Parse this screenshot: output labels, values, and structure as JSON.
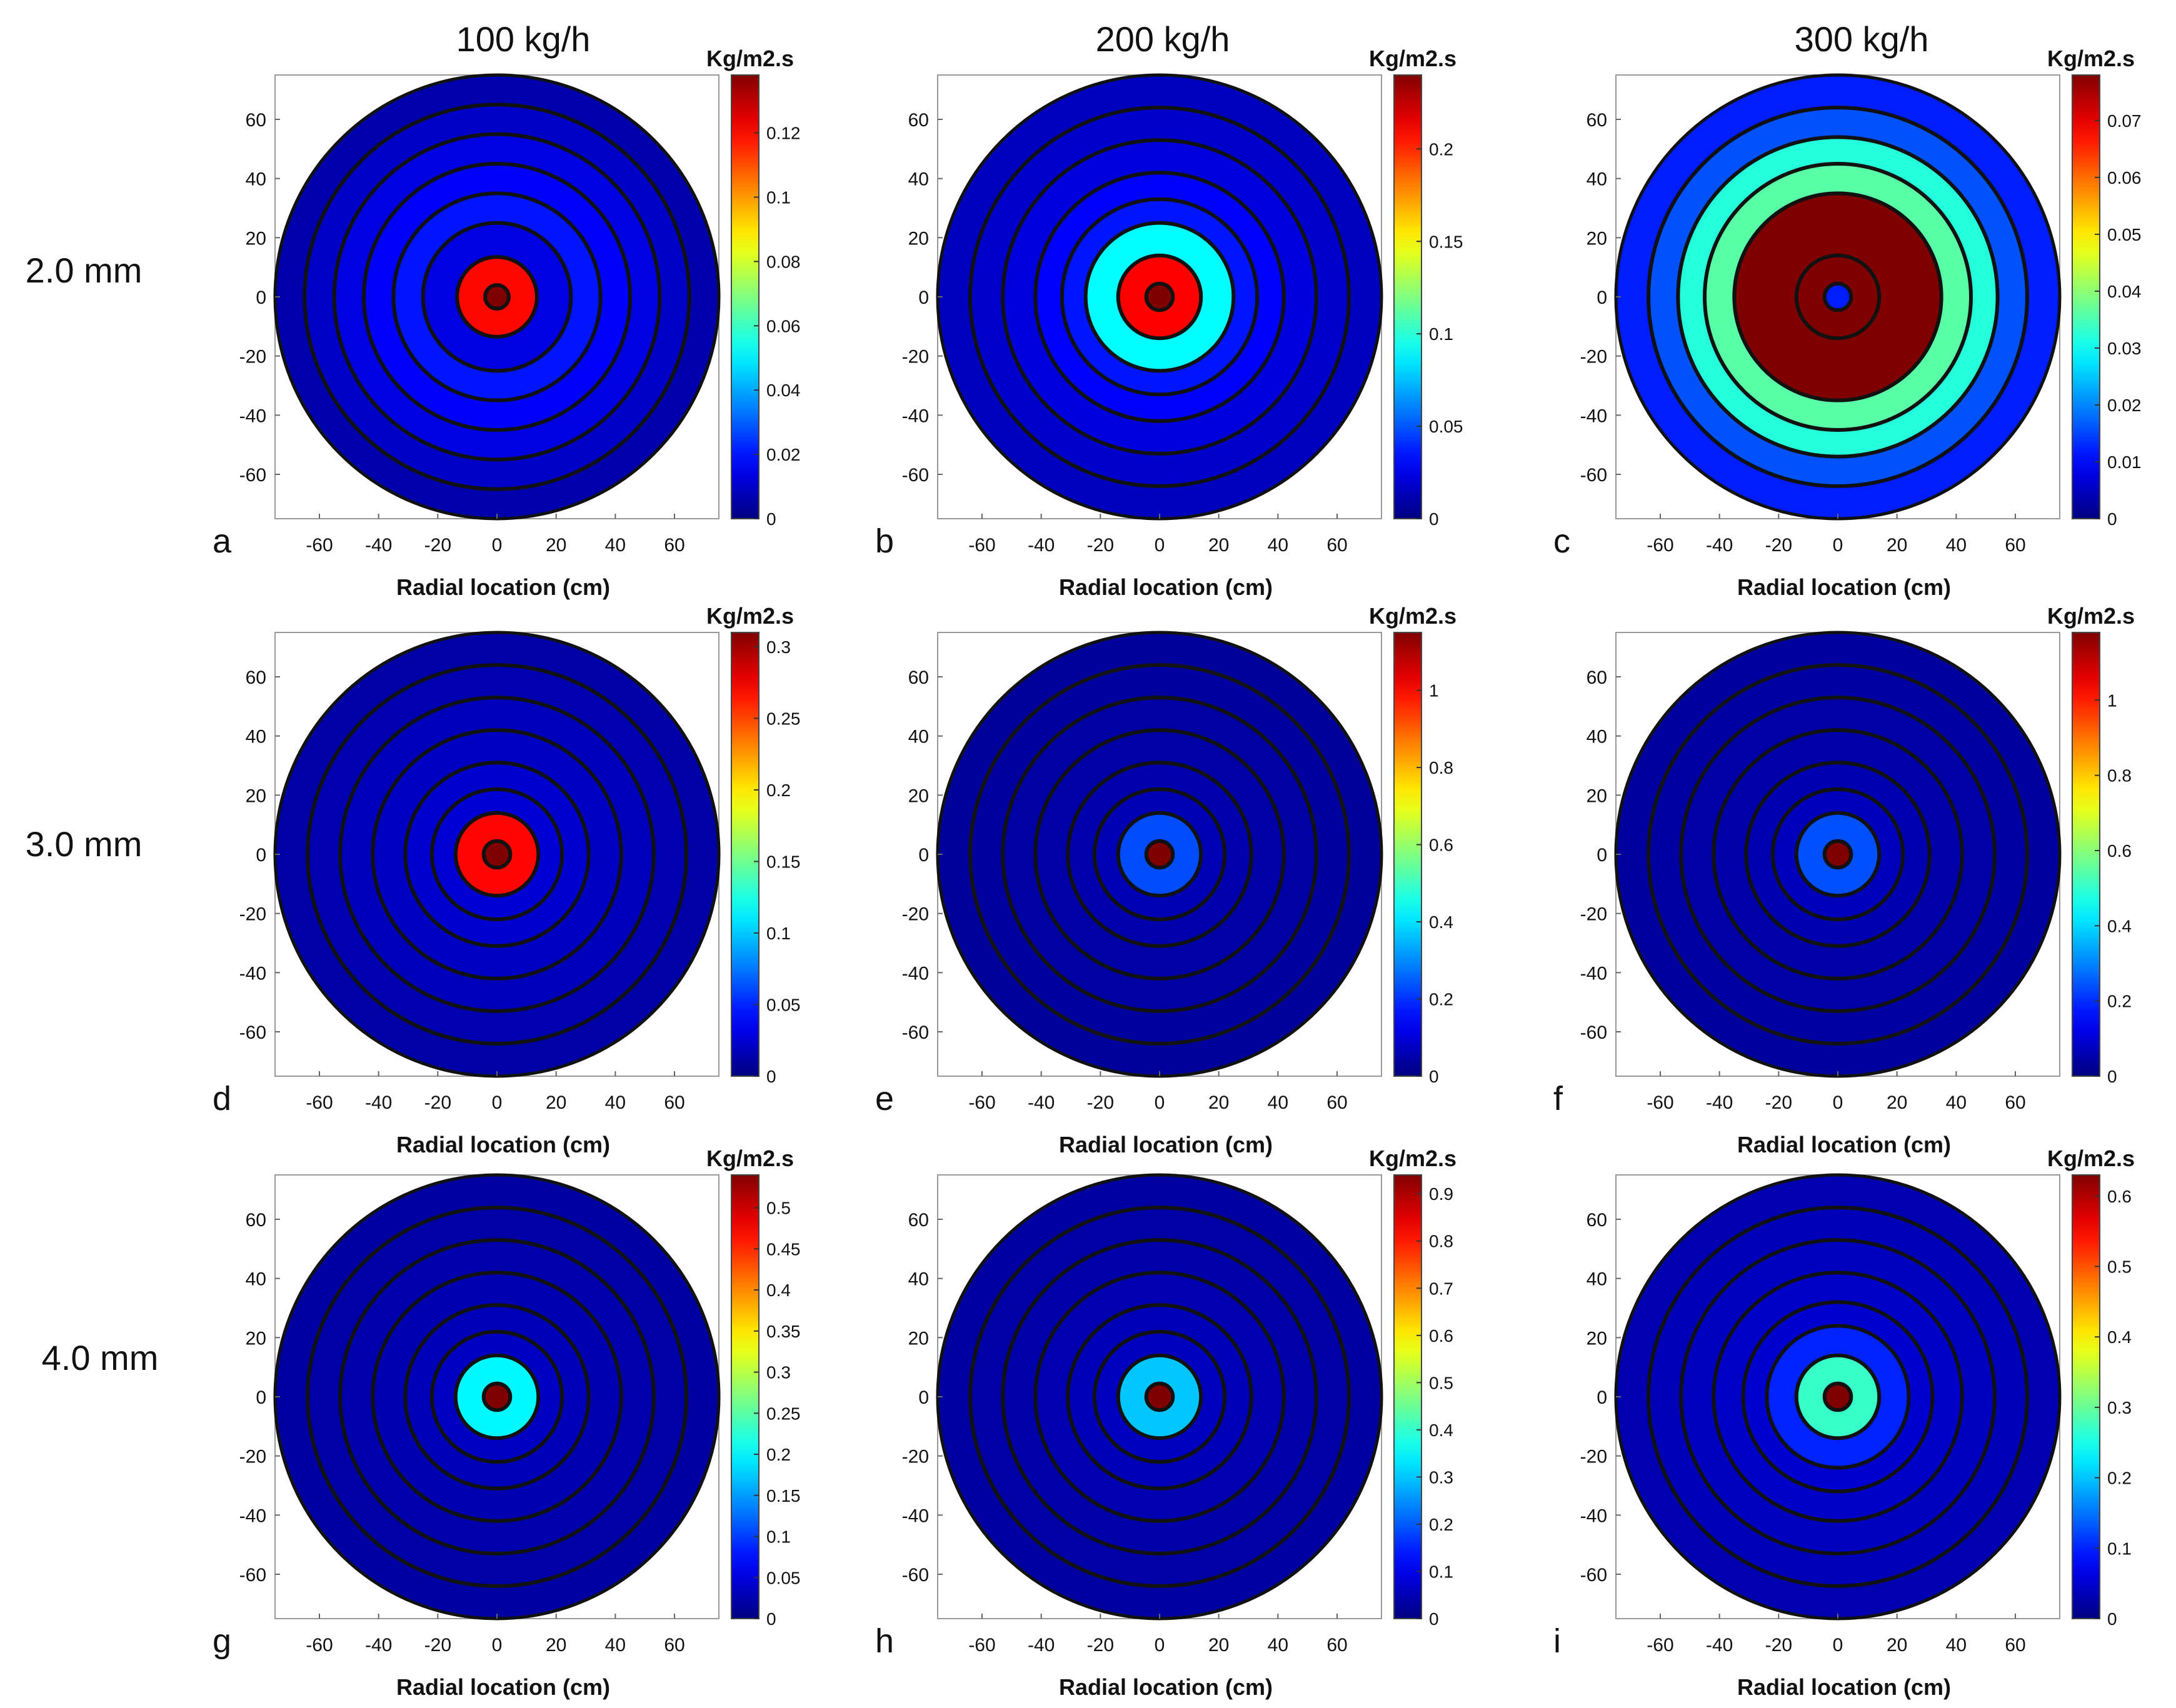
{
  "figure": {
    "column_headers": [
      "100 kg/h",
      "200 kg/h",
      "300 kg/h"
    ],
    "row_labels": [
      "2.0 mm",
      "3.0 mm",
      "4.0 mm"
    ]
  },
  "chart_data": [
    {
      "panel": "a",
      "type": "heatmap",
      "flow": "100 kg/h",
      "size": "2.0 mm",
      "xlabel": "Radial location (cm)",
      "ylabel": "",
      "xlim": [
        -75,
        75
      ],
      "ylim": [
        -75,
        75
      ],
      "xticks": [
        -60,
        -40,
        -20,
        0,
        20,
        40,
        60
      ],
      "yticks": [
        60,
        40,
        20,
        0,
        -20,
        -40,
        -60
      ],
      "colorbar": {
        "unit": "Kg/m2.s",
        "max": 0.138,
        "ticks": [
          0,
          0.02,
          0.04,
          0.06,
          0.08,
          0.1,
          0.12
        ]
      },
      "rings": [
        {
          "r_outer": 75,
          "value": 0.006
        },
        {
          "r_outer": 65,
          "value": 0.01
        },
        {
          "r_outer": 55,
          "value": 0.013
        },
        {
          "r_outer": 45,
          "value": 0.017
        },
        {
          "r_outer": 35,
          "value": 0.02
        },
        {
          "r_outer": 25,
          "value": 0.013
        },
        {
          "r_outer": 13.5,
          "value": 0.12
        },
        {
          "r_outer": 4,
          "value": 0.138
        }
      ]
    },
    {
      "panel": "b",
      "type": "heatmap",
      "flow": "200 kg/h",
      "size": "2.0 mm",
      "xlabel": "Radial location (cm)",
      "ylabel": "",
      "xlim": [
        -75,
        75
      ],
      "ylim": [
        -75,
        75
      ],
      "xticks": [
        -60,
        -40,
        -20,
        0,
        20,
        40,
        60
      ],
      "yticks": [
        60,
        40,
        20,
        0,
        -20,
        -40,
        -60
      ],
      "colorbar": {
        "unit": "Kg/m2.s",
        "max": 0.24,
        "ticks": [
          0,
          0.05,
          0.1,
          0.15,
          0.2
        ]
      },
      "rings": [
        {
          "r_outer": 75,
          "value": 0.015
        },
        {
          "r_outer": 64,
          "value": 0.018
        },
        {
          "r_outer": 53,
          "value": 0.022
        },
        {
          "r_outer": 42,
          "value": 0.03
        },
        {
          "r_outer": 33,
          "value": 0.035
        },
        {
          "r_outer": 25,
          "value": 0.09
        },
        {
          "r_outer": 14,
          "value": 0.21
        },
        {
          "r_outer": 4.5,
          "value": 0.24
        }
      ]
    },
    {
      "panel": "c",
      "type": "heatmap",
      "flow": "300 kg/h",
      "size": "2.0 mm",
      "xlabel": "Radial location (cm)",
      "ylabel": "",
      "xlim": [
        -75,
        75
      ],
      "ylim": [
        -75,
        75
      ],
      "xticks": [
        -60,
        -40,
        -20,
        0,
        20,
        40,
        60
      ],
      "yticks": [
        60,
        40,
        20,
        0,
        -20,
        -40,
        -60
      ],
      "colorbar": {
        "unit": "Kg/m2.s",
        "max": 0.078,
        "ticks": [
          0,
          0.01,
          0.02,
          0.03,
          0.04,
          0.05,
          0.06,
          0.07
        ]
      },
      "rings": [
        {
          "r_outer": 75,
          "value": 0.012
        },
        {
          "r_outer": 64,
          "value": 0.016
        },
        {
          "r_outer": 54,
          "value": 0.032
        },
        {
          "r_outer": 45,
          "value": 0.036
        },
        {
          "r_outer": 35,
          "value": 0.078
        },
        {
          "r_outer": 14,
          "value": 0.078
        },
        {
          "r_outer": 4.5,
          "value": 0.012
        }
      ]
    },
    {
      "panel": "d",
      "type": "heatmap",
      "flow": "100 kg/h",
      "size": "3.0 mm",
      "xlabel": "Radial location (cm)",
      "ylabel": "",
      "xlim": [
        -75,
        75
      ],
      "ylim": [
        -75,
        75
      ],
      "xticks": [
        -60,
        -40,
        -20,
        0,
        20,
        40,
        60
      ],
      "yticks": [
        60,
        40,
        20,
        0,
        -20,
        -40,
        -60
      ],
      "colorbar": {
        "unit": "Kg/m2.s",
        "max": 0.31,
        "ticks": [
          0,
          0.05,
          0.1,
          0.15,
          0.2,
          0.25,
          0.3
        ]
      },
      "rings": [
        {
          "r_outer": 75,
          "value": 0.012
        },
        {
          "r_outer": 64,
          "value": 0.015
        },
        {
          "r_outer": 53,
          "value": 0.018
        },
        {
          "r_outer": 42,
          "value": 0.021
        },
        {
          "r_outer": 31,
          "value": 0.024
        },
        {
          "r_outer": 22,
          "value": 0.026
        },
        {
          "r_outer": 14,
          "value": 0.27
        },
        {
          "r_outer": 4.5,
          "value": 0.31
        }
      ]
    },
    {
      "panel": "e",
      "type": "heatmap",
      "flow": "200 kg/h",
      "size": "3.0 mm",
      "xlabel": "Radial location (cm)",
      "ylabel": "",
      "xlim": [
        -75,
        75
      ],
      "ylim": [
        -75,
        75
      ],
      "xticks": [
        -60,
        -40,
        -20,
        0,
        20,
        40,
        60
      ],
      "yticks": [
        60,
        40,
        20,
        0,
        -20,
        -40,
        -60
      ],
      "colorbar": {
        "unit": "Kg/m2.s",
        "max": 1.15,
        "ticks": [
          0,
          0.2,
          0.4,
          0.6,
          0.8,
          1
        ]
      },
      "rings": [
        {
          "r_outer": 75,
          "value": 0.03
        },
        {
          "r_outer": 64,
          "value": 0.035
        },
        {
          "r_outer": 53,
          "value": 0.04
        },
        {
          "r_outer": 42,
          "value": 0.045
        },
        {
          "r_outer": 31,
          "value": 0.05
        },
        {
          "r_outer": 22,
          "value": 0.06
        },
        {
          "r_outer": 14,
          "value": 0.23
        },
        {
          "r_outer": 4.5,
          "value": 1.15
        }
      ]
    },
    {
      "panel": "f",
      "type": "heatmap",
      "flow": "300 kg/h",
      "size": "3.0 mm",
      "xlabel": "Radial location (cm)",
      "ylabel": "",
      "xlim": [
        -75,
        75
      ],
      "ylim": [
        -75,
        75
      ],
      "xticks": [
        -60,
        -40,
        -20,
        0,
        20,
        40,
        60
      ],
      "yticks": [
        60,
        40,
        20,
        0,
        -20,
        -40,
        -60
      ],
      "colorbar": {
        "unit": "Kg/m2.s",
        "max": 1.18,
        "ticks": [
          0,
          0.2,
          0.4,
          0.6,
          0.8,
          1
        ]
      },
      "rings": [
        {
          "r_outer": 75,
          "value": 0.035
        },
        {
          "r_outer": 64,
          "value": 0.04
        },
        {
          "r_outer": 53,
          "value": 0.045
        },
        {
          "r_outer": 42,
          "value": 0.05
        },
        {
          "r_outer": 31,
          "value": 0.06
        },
        {
          "r_outer": 22,
          "value": 0.07
        },
        {
          "r_outer": 14,
          "value": 0.24
        },
        {
          "r_outer": 4.5,
          "value": 1.18
        }
      ]
    },
    {
      "panel": "g",
      "type": "heatmap",
      "flow": "100 kg/h",
      "size": "4.0 mm",
      "xlabel": "Radial location (cm)",
      "ylabel": "",
      "xlim": [
        -75,
        75
      ],
      "ylim": [
        -75,
        75
      ],
      "xticks": [
        -60,
        -40,
        -20,
        0,
        20,
        40,
        60
      ],
      "yticks": [
        60,
        40,
        20,
        0,
        -20,
        -40,
        -60
      ],
      "colorbar": {
        "unit": "Kg/m2.s",
        "max": 0.54,
        "ticks": [
          0,
          0.05,
          0.1,
          0.15,
          0.2,
          0.25,
          0.3,
          0.35,
          0.4,
          0.45,
          0.5
        ]
      },
      "rings": [
        {
          "r_outer": 75,
          "value": 0.018
        },
        {
          "r_outer": 64,
          "value": 0.021
        },
        {
          "r_outer": 53,
          "value": 0.024
        },
        {
          "r_outer": 42,
          "value": 0.027
        },
        {
          "r_outer": 31,
          "value": 0.03
        },
        {
          "r_outer": 22,
          "value": 0.035
        },
        {
          "r_outer": 14,
          "value": 0.2
        },
        {
          "r_outer": 4.5,
          "value": 0.54
        }
      ]
    },
    {
      "panel": "h",
      "type": "heatmap",
      "flow": "200 kg/h",
      "size": "4.0 mm",
      "xlabel": "Radial location (cm)",
      "ylabel": "",
      "xlim": [
        -75,
        75
      ],
      "ylim": [
        -75,
        75
      ],
      "xticks": [
        -60,
        -40,
        -20,
        0,
        20,
        40,
        60
      ],
      "yticks": [
        60,
        40,
        20,
        0,
        -20,
        -40,
        -60
      ],
      "colorbar": {
        "unit": "Kg/m2.s",
        "max": 0.94,
        "ticks": [
          0,
          0.1,
          0.2,
          0.3,
          0.4,
          0.5,
          0.6,
          0.7,
          0.8,
          0.9
        ]
      },
      "rings": [
        {
          "r_outer": 75,
          "value": 0.03
        },
        {
          "r_outer": 64,
          "value": 0.035
        },
        {
          "r_outer": 53,
          "value": 0.04
        },
        {
          "r_outer": 42,
          "value": 0.045
        },
        {
          "r_outer": 31,
          "value": 0.05
        },
        {
          "r_outer": 22,
          "value": 0.06
        },
        {
          "r_outer": 14,
          "value": 0.3
        },
        {
          "r_outer": 4.5,
          "value": 0.94
        }
      ]
    },
    {
      "panel": "i",
      "type": "heatmap",
      "flow": "300 kg/h",
      "size": "4.0 mm",
      "xlabel": "Radial location (cm)",
      "ylabel": "",
      "xlim": [
        -75,
        75
      ],
      "ylim": [
        -75,
        75
      ],
      "xticks": [
        -60,
        -40,
        -20,
        0,
        20,
        40,
        60
      ],
      "yticks": [
        60,
        40,
        20,
        0,
        -20,
        -40,
        -60
      ],
      "colorbar": {
        "unit": "Kg/m2.s",
        "max": 0.63,
        "ticks": [
          0,
          0.1,
          0.2,
          0.3,
          0.4,
          0.5,
          0.6
        ]
      },
      "rings": [
        {
          "r_outer": 75,
          "value": 0.03
        },
        {
          "r_outer": 64,
          "value": 0.035
        },
        {
          "r_outer": 53,
          "value": 0.04
        },
        {
          "r_outer": 42,
          "value": 0.045
        },
        {
          "r_outer": 32,
          "value": 0.05
        },
        {
          "r_outer": 24,
          "value": 0.1
        },
        {
          "r_outer": 14,
          "value": 0.27
        },
        {
          "r_outer": 4.5,
          "value": 0.63
        }
      ]
    }
  ]
}
